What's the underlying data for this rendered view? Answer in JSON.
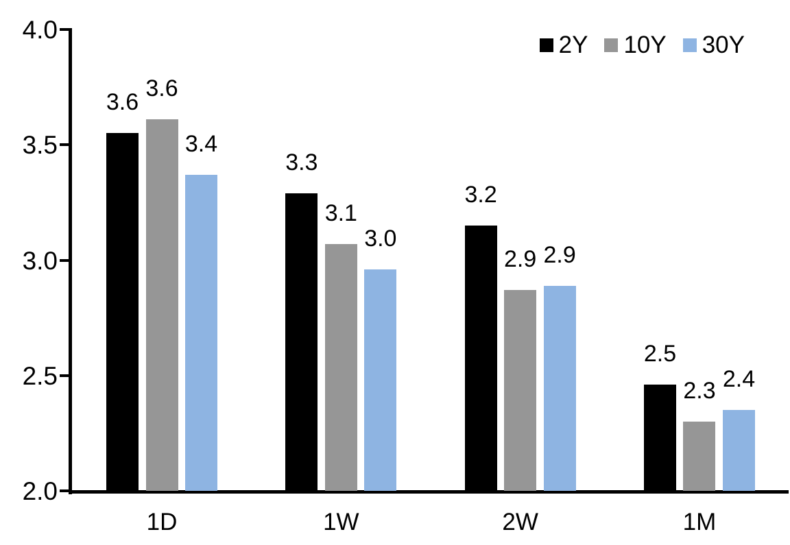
{
  "chart_data": {
    "type": "bar",
    "title": "",
    "xlabel": "",
    "ylabel": "",
    "categories": [
      "1D",
      "1W",
      "2W",
      "1M"
    ],
    "series": [
      {
        "name": "2Y",
        "color": "#000000",
        "values": [
          3.55,
          3.29,
          3.15,
          2.46
        ],
        "labels": [
          "3.6",
          "3.3",
          "3.2",
          "2.5"
        ]
      },
      {
        "name": "10Y",
        "color": "#969696",
        "values": [
          3.61,
          3.07,
          2.87,
          2.3
        ],
        "labels": [
          "3.6",
          "3.1",
          "2.9",
          "2.3"
        ]
      },
      {
        "name": "30Y",
        "color": "#8EB4E2",
        "values": [
          3.37,
          2.96,
          2.89,
          2.35
        ],
        "labels": [
          "3.4",
          "3.0",
          "2.9",
          "2.4"
        ]
      }
    ],
    "ylim": [
      2.0,
      4.0
    ],
    "yticks": [
      4.0,
      3.5,
      3.0,
      2.5,
      2.0
    ],
    "ytick_labels": [
      "4.0",
      "3.5",
      "3.0",
      "2.5",
      "2.0"
    ],
    "grid": false,
    "legend_position": "top-right",
    "axis_color": "#000000",
    "background_color": "#ffffff"
  }
}
